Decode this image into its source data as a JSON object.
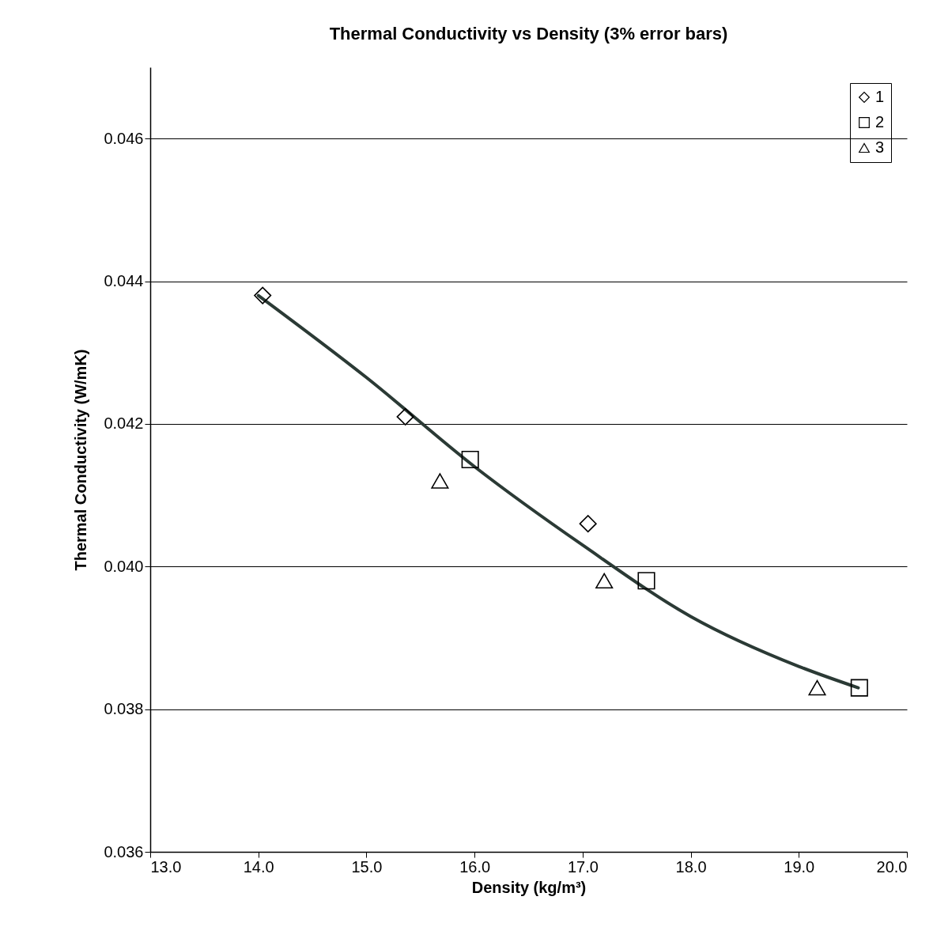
{
  "chart_data": {
    "type": "scatter",
    "title": "Thermal Conductivity vs Density (3% error bars)",
    "xlabel": "Density (kg/m³)",
    "ylabel": "Thermal Conductivity (W/mK)",
    "xlim": [
      13,
      20
    ],
    "xticks": [
      {
        "value": 13,
        "label": "13.0"
      },
      {
        "value": 14,
        "label": "14.0"
      },
      {
        "value": 15,
        "label": "15.0"
      },
      {
        "value": 16,
        "label": "16.0"
      },
      {
        "value": 17,
        "label": "17.0"
      },
      {
        "value": 18,
        "label": "18.0"
      },
      {
        "value": 19,
        "label": "19.0"
      },
      {
        "value": 20,
        "label": "20.0"
      }
    ],
    "ylim": [
      0.036,
      0.047
    ],
    "yticks": [
      0.036,
      0.038,
      {
        "value": 0.04,
        "label": "0.040"
      },
      0.042,
      0.044,
      0.046
    ],
    "grid": "y",
    "legend": "top right",
    "series": [
      {
        "type": "line",
        "color": "#2b3a35",
        "x": [
          14.0,
          15.0,
          16.0,
          17.0,
          18.0,
          19.0,
          19.55
        ],
        "values": [
          0.0438,
          0.04265,
          0.0414,
          0.0403,
          0.0393,
          0.0386,
          0.0383
        ]
      },
      {
        "name": "1",
        "color": "#000000",
        "marker": "diamond",
        "x": [
          14.04,
          15.36,
          17.05
        ],
        "values": [
          0.0438,
          0.0421,
          0.0406
        ]
      },
      {
        "name": "2",
        "color": "#000000",
        "marker": "square",
        "x": [
          15.96,
          17.59,
          19.56
        ],
        "values": [
          0.0415,
          0.0398,
          0.0383
        ]
      },
      {
        "name": "3",
        "color": "#000000",
        "marker": "triangle",
        "x": [
          15.68,
          17.2,
          19.17
        ],
        "values": [
          0.0412,
          0.0398,
          0.0383
        ]
      }
    ]
  }
}
